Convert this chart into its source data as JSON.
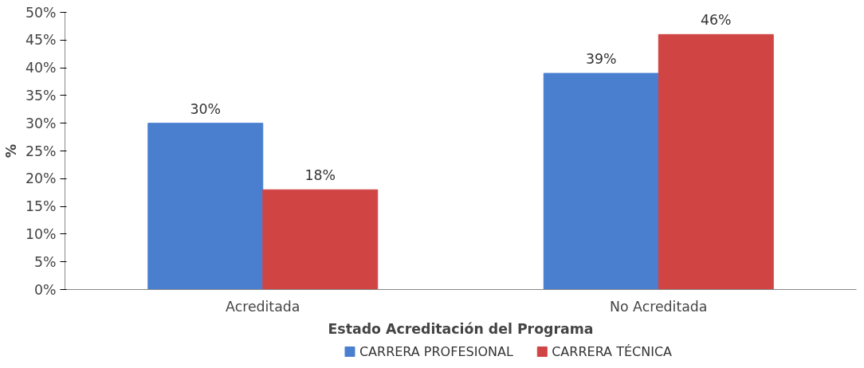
{
  "chart_data": {
    "type": "bar",
    "xlabel": "Estado Acreditación del Programa",
    "ylabel": "%",
    "categories": [
      "Acreditada",
      "No Acreditada"
    ],
    "series": [
      {
        "name": "CARRERA PROFESIONAL",
        "color": "#4a7fd0",
        "values": [
          30,
          39
        ],
        "value_labels": [
          "30%",
          "39%"
        ]
      },
      {
        "name": "CARRERA TÉCNICA",
        "color": "#d04444",
        "values": [
          18,
          46
        ],
        "value_labels": [
          "18%",
          "46%"
        ]
      }
    ],
    "ylim": [
      0,
      50
    ],
    "yticks": [
      {
        "value": 0,
        "label": "0%"
      },
      {
        "value": 5,
        "label": "5%"
      },
      {
        "value": 10,
        "label": "10%"
      },
      {
        "value": 15,
        "label": "15%"
      },
      {
        "value": 20,
        "label": "20%"
      },
      {
        "value": 25,
        "label": "25%"
      },
      {
        "value": 30,
        "label": "30%"
      },
      {
        "value": 35,
        "label": "35%"
      },
      {
        "value": 40,
        "label": "40%"
      },
      {
        "value": 45,
        "label": "45%"
      },
      {
        "value": 50,
        "label": "50%"
      }
    ],
    "grid": false,
    "legend": "bottom"
  }
}
